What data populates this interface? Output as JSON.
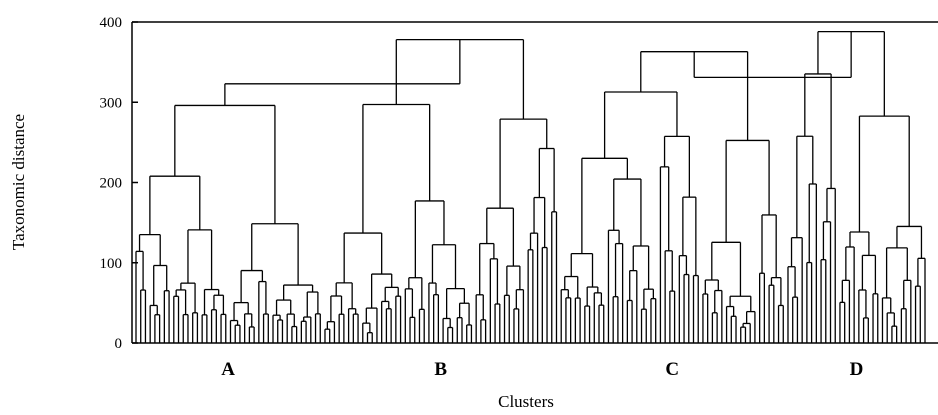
{
  "chart_data": {
    "type": "dendrogram",
    "ylabel": "Taxonomic distance",
    "xlabel": "Clusters",
    "ylim": [
      0,
      400
    ],
    "yticks": [
      0,
      100,
      200,
      300,
      400
    ],
    "grid": false,
    "clusters": [
      {
        "label": "A",
        "leaves": 40,
        "root": 296
      },
      {
        "label": "B",
        "leaves": 50,
        "root": 378
      },
      {
        "label": "C",
        "leaves": 48,
        "root": 363
      },
      {
        "label": "D",
        "leaves": 30,
        "root": 388
      }
    ],
    "merges": [
      {
        "left": "A",
        "right": "B",
        "height": 323
      },
      {
        "left": "C",
        "right": "D",
        "height": 331
      }
    ],
    "colors": {
      "line": "#000000",
      "background": "#ffffff"
    }
  }
}
